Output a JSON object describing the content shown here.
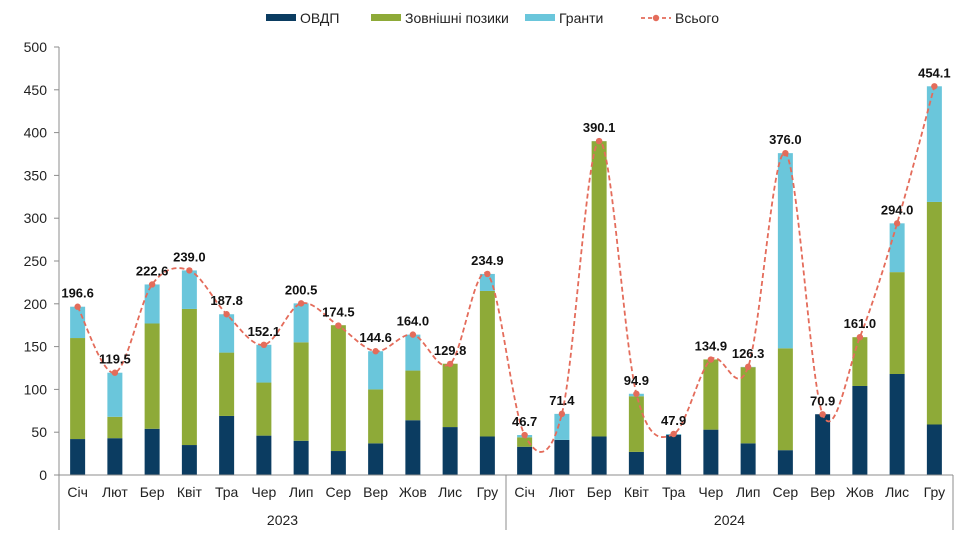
{
  "chart_data": {
    "type": "bar",
    "stacked": true,
    "title": "",
    "xlabel": "",
    "ylabel": "",
    "ylim": [
      0,
      500
    ],
    "yticks": [
      0,
      50,
      100,
      150,
      200,
      250,
      300,
      350,
      400,
      450,
      500
    ],
    "grid": false,
    "legend_position": "top",
    "categories": [
      "Січ",
      "Лют",
      "Бер",
      "Квіт",
      "Тра",
      "Чер",
      "Лип",
      "Сер",
      "Вер",
      "Жов",
      "Лис",
      "Гру",
      "Січ",
      "Лют",
      "Бер",
      "Квіт",
      "Тра",
      "Чер",
      "Лип",
      "Сер",
      "Вер",
      "Жов",
      "Лис",
      "Гру"
    ],
    "groups": [
      {
        "label": "2023",
        "start": 0,
        "end": 11
      },
      {
        "label": "2024",
        "start": 12,
        "end": 23
      }
    ],
    "series": [
      {
        "name": "ОВДП",
        "color": "#0b3c61",
        "values": [
          42,
          43,
          54,
          35,
          69,
          46,
          40,
          28,
          37,
          64,
          56,
          45,
          33,
          41,
          45,
          27,
          47,
          53,
          37,
          29,
          71,
          104,
          118,
          59
        ]
      },
      {
        "name": "Зовнішні позики",
        "color": "#8eaa38",
        "values": [
          118,
          25,
          123,
          159,
          74,
          62,
          115,
          147,
          63,
          58,
          74,
          170,
          11,
          0,
          345,
          65,
          0,
          82,
          89,
          119,
          0,
          57,
          119,
          260
        ]
      },
      {
        "name": "Гранти",
        "color": "#6ac6db",
        "values": [
          36.6,
          51.5,
          45.6,
          45,
          44.8,
          44.1,
          45.5,
          0,
          44.6,
          42,
          0,
          19.9,
          2.7,
          30.4,
          0.1,
          2.9,
          0.9,
          0,
          0.3,
          228,
          0,
          0,
          57,
          135.1
        ]
      }
    ],
    "total": {
      "name": "Всього",
      "color": "#e46c5b",
      "values": [
        196.6,
        119.5,
        222.6,
        239.0,
        187.8,
        152.1,
        200.5,
        174.5,
        144.6,
        164.0,
        129.8,
        234.9,
        46.7,
        71.4,
        390.1,
        94.9,
        47.9,
        134.9,
        126.3,
        376.0,
        70.9,
        161.0,
        294.0,
        454.1
      ],
      "labels": [
        "196.6",
        "119.5",
        "222.6",
        "239.0",
        "187.8",
        "152.1",
        "200.5",
        "174.5",
        "144.6",
        "164.0",
        "129.8",
        "234.9",
        "46.7",
        "71.4",
        "390.1",
        "94.9",
        "47.9",
        "134.9",
        "126.3",
        "376.0",
        "70.9",
        "161.0",
        "294.0",
        "454.1"
      ]
    }
  }
}
